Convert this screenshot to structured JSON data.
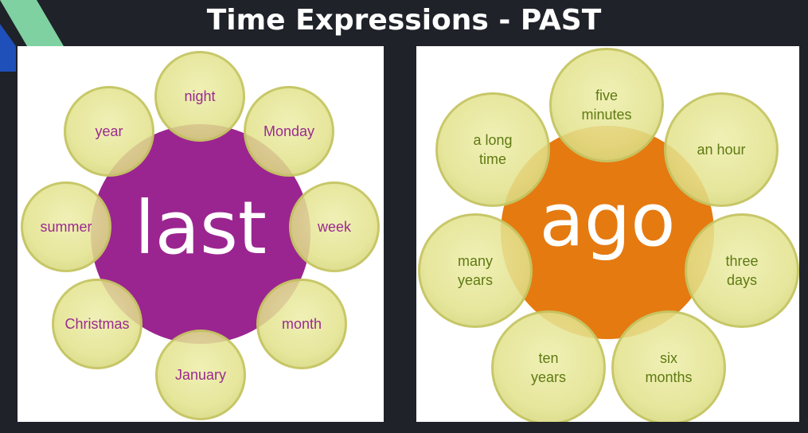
{
  "title": "Time Expressions - PAST",
  "colors": {
    "background": "#1f2229",
    "last_hub": "#9b2590",
    "ago_hub": "#e57a10",
    "bubble": "#e6e6a0",
    "last_text": "#9a2b8e",
    "ago_text": "#5f7a12"
  },
  "last_diagram": {
    "center_word": "last",
    "items": [
      "night",
      "Monday",
      "week",
      "month",
      "January",
      "Christmas",
      "summer",
      "year"
    ]
  },
  "ago_diagram": {
    "center_word": "ago",
    "items": [
      "five\nminutes",
      "an hour",
      "three\ndays",
      "six\nmonths",
      "ten\nyears",
      "many\nyears",
      "a long\ntime"
    ]
  }
}
